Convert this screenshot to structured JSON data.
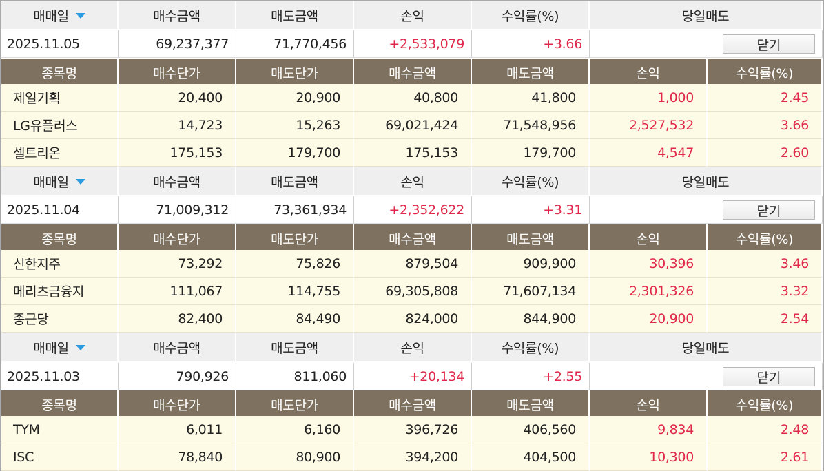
{
  "colors": {
    "header_bg": "#efefef",
    "subheader_bg": "#7e715f",
    "row_bg": "#fdfbe6",
    "profit_red": "#e0284a",
    "sort_arrow": "#2a9be0"
  },
  "icons": {
    "sort": "triangle-down-icon"
  },
  "groups": [
    {
      "header": {
        "date": "매매일",
        "buy_amount": "매수금액",
        "sell_amount": "매도금액",
        "pnl": "손익",
        "return": "수익률(%)",
        "same_day_sell": "당일매도"
      },
      "summary": {
        "date": "2025.11.05",
        "buy_amount": "69,237,377",
        "sell_amount": "71,770,456",
        "pnl": "+2,533,079",
        "return": "+3.66",
        "close_button": "닫기"
      },
      "sub_header": {
        "name": "종목명",
        "buy_price": "매수단가",
        "sell_price": "매도단가",
        "buy_amount": "매수금액",
        "sell_amount": "매도금액",
        "pnl": "손익",
        "return": "수익률(%)"
      },
      "items": [
        {
          "name": "제일기획",
          "buy_price": "20,400",
          "sell_price": "20,900",
          "buy_amount": "40,800",
          "sell_amount": "41,800",
          "pnl": "1,000",
          "return": "2.45"
        },
        {
          "name": "LG유플러스",
          "buy_price": "14,723",
          "sell_price": "15,263",
          "buy_amount": "69,021,424",
          "sell_amount": "71,548,956",
          "pnl": "2,527,532",
          "return": "3.66"
        },
        {
          "name": "셀트리온",
          "buy_price": "175,153",
          "sell_price": "179,700",
          "buy_amount": "175,153",
          "sell_amount": "179,700",
          "pnl": "4,547",
          "return": "2.60"
        }
      ]
    },
    {
      "header": {
        "date": "매매일",
        "buy_amount": "매수금액",
        "sell_amount": "매도금액",
        "pnl": "손익",
        "return": "수익률(%)",
        "same_day_sell": "당일매도"
      },
      "summary": {
        "date": "2025.11.04",
        "buy_amount": "71,009,312",
        "sell_amount": "73,361,934",
        "pnl": "+2,352,622",
        "return": "+3.31",
        "close_button": "닫기"
      },
      "sub_header": {
        "name": "종목명",
        "buy_price": "매수단가",
        "sell_price": "매도단가",
        "buy_amount": "매수금액",
        "sell_amount": "매도금액",
        "pnl": "손익",
        "return": "수익률(%)"
      },
      "items": [
        {
          "name": "신한지주",
          "buy_price": "73,292",
          "sell_price": "75,826",
          "buy_amount": "879,504",
          "sell_amount": "909,900",
          "pnl": "30,396",
          "return": "3.46"
        },
        {
          "name": "메리츠금융지",
          "buy_price": "111,067",
          "sell_price": "114,755",
          "buy_amount": "69,305,808",
          "sell_amount": "71,607,134",
          "pnl": "2,301,326",
          "return": "3.32"
        },
        {
          "name": "종근당",
          "buy_price": "82,400",
          "sell_price": "84,490",
          "buy_amount": "824,000",
          "sell_amount": "844,900",
          "pnl": "20,900",
          "return": "2.54"
        }
      ]
    },
    {
      "header": {
        "date": "매매일",
        "buy_amount": "매수금액",
        "sell_amount": "매도금액",
        "pnl": "손익",
        "return": "수익률(%)",
        "same_day_sell": "당일매도"
      },
      "summary": {
        "date": "2025.11.03",
        "buy_amount": "790,926",
        "sell_amount": "811,060",
        "pnl": "+20,134",
        "return": "+2.55",
        "close_button": "닫기"
      },
      "sub_header": {
        "name": "종목명",
        "buy_price": "매수단가",
        "sell_price": "매도단가",
        "buy_amount": "매수금액",
        "sell_amount": "매도금액",
        "pnl": "손익",
        "return": "수익률(%)"
      },
      "items": [
        {
          "name": "TYM",
          "buy_price": "6,011",
          "sell_price": "6,160",
          "buy_amount": "396,726",
          "sell_amount": "406,560",
          "pnl": "9,834",
          "return": "2.48"
        },
        {
          "name": "ISC",
          "buy_price": "78,840",
          "sell_price": "80,900",
          "buy_amount": "394,200",
          "sell_amount": "404,500",
          "pnl": "10,300",
          "return": "2.61"
        }
      ]
    }
  ]
}
